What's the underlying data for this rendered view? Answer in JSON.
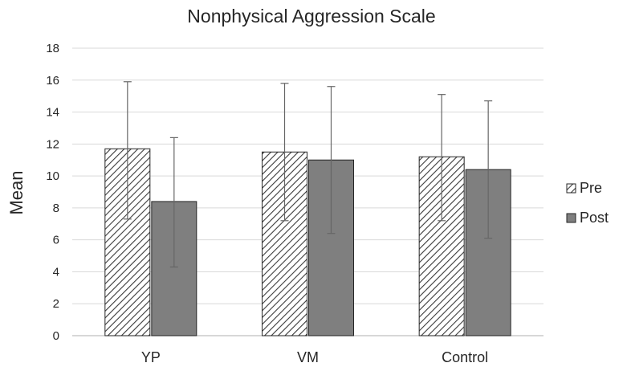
{
  "chart_data": {
    "type": "bar",
    "title": "Nonphysical  Aggression Scale",
    "xlabel": "",
    "ylabel": "Mean",
    "ylim": [
      0,
      18
    ],
    "yticks": [
      0,
      2,
      4,
      6,
      8,
      10,
      12,
      14,
      16,
      18
    ],
    "grid": true,
    "legend_position": "right",
    "categories": [
      "YP",
      "VM",
      "Control"
    ],
    "series": [
      {
        "name": "Pre",
        "values": [
          11.7,
          11.5,
          11.2
        ],
        "error_low": [
          7.3,
          7.2,
          7.2
        ],
        "error_high": [
          15.9,
          15.8,
          15.1
        ],
        "pattern": "diagonal-hatch"
      },
      {
        "name": "Post",
        "values": [
          8.4,
          11.0,
          10.4
        ],
        "error_low": [
          4.3,
          6.4,
          6.1
        ],
        "error_high": [
          12.4,
          15.6,
          14.7
        ],
        "pattern": "solid",
        "color": "#7f7f7f"
      }
    ]
  }
}
